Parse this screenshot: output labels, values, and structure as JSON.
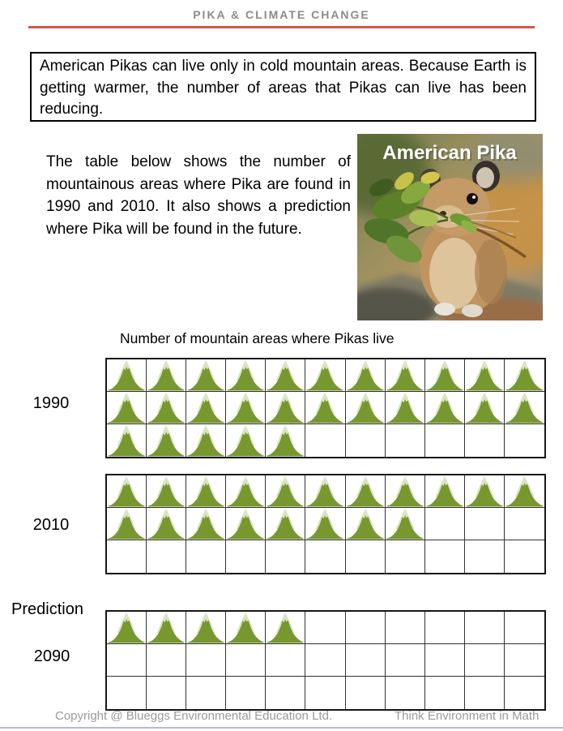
{
  "header": {
    "title": "PIKA & CLIMATE CHANGE",
    "accent_color": "#d0574e"
  },
  "intro_box": {
    "text": "American Pikas can live only in cold mountain areas.  Because Earth is getting warmer,  the number of areas that Pikas can live has been reducing."
  },
  "description": {
    "text": "The table below shows the number of mountainous areas where Pika are found in 1990 and 2010. It also shows a prediction where Pika will be found in the future."
  },
  "photo": {
    "caption": "American Pika"
  },
  "chart_data": {
    "type": "pictograph",
    "title": "Number of mountain areas where Pikas live",
    "icon": "mountain-icon",
    "icon_unit": 1,
    "columns": 11,
    "rows_per_group": 3,
    "categories": [
      "1990",
      "2010",
      "Prediction 2090"
    ],
    "values": [
      27,
      19,
      5
    ],
    "groups": [
      {
        "label": "1990",
        "count": 27,
        "row_counts": [
          11,
          11,
          5
        ]
      },
      {
        "label": "2010",
        "count": 19,
        "row_counts": [
          11,
          8,
          0
        ]
      },
      {
        "label_prefix": "Prediction",
        "label": "2090",
        "count": 5,
        "row_counts": [
          5,
          0,
          0
        ]
      }
    ],
    "icon_colors": {
      "mountain_body": "#76982f",
      "snow_cap": "#dbe5c4",
      "base_line": "#9db05e"
    },
    "grid_line_color": "#333333"
  },
  "footer": {
    "copyright": "Copyright @ Blueggs Environmental Education Ltd.",
    "tagline": "Think Environment in Math"
  }
}
